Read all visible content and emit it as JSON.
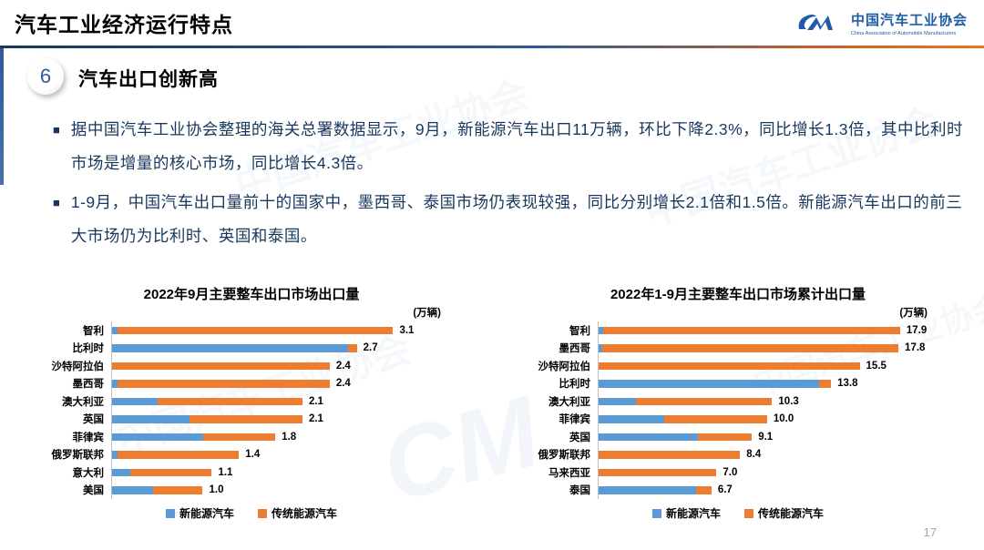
{
  "header": {
    "title": "汽车工业经济运行特点",
    "logo": {
      "org_cn": "中国汽车工业协会",
      "org_en": "China Association of Automobile Manufacturers"
    }
  },
  "section": {
    "number": "6",
    "title": "汽车出口创新高"
  },
  "bullets": [
    "据中国汽车工业协会整理的海关总署数据显示，9月，新能源汽车出口11万辆，环比下降2.3%，同比增长1.3倍，其中比利时市场是增量的核心市场，同比增长4.3倍。",
    "1-9月，中国汽车出口量前十的国家中，墨西哥、泰国市场仍表现较强，同比分别增长2.1倍和1.5倍。新能源汽车出口的前三大市场仍为比利时、英国和泰国。"
  ],
  "colors": {
    "nev": "#5B9BD5",
    "traditional": "#ED7D31",
    "accent_blue": "#2E5B97",
    "text_blue": "#17375E",
    "divider_left": "#17375E",
    "divider_right": "#E87722"
  },
  "watermark_text": "中国汽车工业协会",
  "page_number": "17",
  "chart_data": [
    {
      "type": "bar",
      "orientation": "horizontal",
      "stacked": true,
      "title": "2022年9月主要整车出口市场出口量",
      "unit": "(万辆)",
      "legend_position": "bottom",
      "grid": false,
      "xlim": [
        0,
        4.05
      ],
      "categories": [
        "智利",
        "比利时",
        "沙特阿拉伯",
        "墨西哥",
        "澳大利亚",
        "英国",
        "菲律宾",
        "俄罗斯联邦",
        "意大利",
        "美国"
      ],
      "series": [
        {
          "name": "新能源汽车",
          "values": [
            0.06,
            2.6,
            0.0,
            0.06,
            0.5,
            0.85,
            1.0,
            0.06,
            0.2,
            0.45
          ]
        },
        {
          "name": "传统能源汽车",
          "values": [
            3.04,
            0.1,
            2.4,
            2.34,
            1.6,
            1.25,
            0.8,
            1.34,
            0.9,
            0.55
          ]
        }
      ],
      "totals": [
        3.1,
        2.7,
        2.4,
        2.4,
        2.1,
        2.1,
        1.8,
        1.4,
        1.1,
        1.0
      ],
      "total_labels": [
        "3.1",
        "2.7",
        "2.4",
        "2.4",
        "2.1",
        "2.1",
        "1.8",
        "1.4",
        "1.1",
        "1.0"
      ]
    },
    {
      "type": "bar",
      "orientation": "horizontal",
      "stacked": true,
      "title": "2022年1-9月主要整车出口市场累计出口量",
      "unit": "(万辆)",
      "legend_position": "bottom",
      "grid": false,
      "xlim": [
        0,
        21.8
      ],
      "categories": [
        "智利",
        "墨西哥",
        "沙特阿拉伯",
        "比利时",
        "澳大利亚",
        "菲律宾",
        "英国",
        "俄罗斯联邦",
        "马来西亚",
        "泰国"
      ],
      "series": [
        {
          "name": "新能源汽车",
          "values": [
            0.25,
            0.2,
            0.0,
            13.1,
            2.2,
            3.9,
            5.9,
            0.0,
            0.0,
            5.8
          ]
        },
        {
          "name": "传统能源汽车",
          "values": [
            17.65,
            17.6,
            15.5,
            0.7,
            8.1,
            6.1,
            3.2,
            8.4,
            7.0,
            0.9
          ]
        }
      ],
      "totals": [
        17.9,
        17.8,
        15.5,
        13.8,
        10.3,
        10.0,
        9.1,
        8.4,
        7.0,
        6.7
      ],
      "total_labels": [
        "17.9",
        "17.8",
        "15.5",
        "13.8",
        "10.3",
        "10.0",
        "9.1",
        "8.4",
        "7.0",
        "6.7"
      ]
    }
  ]
}
